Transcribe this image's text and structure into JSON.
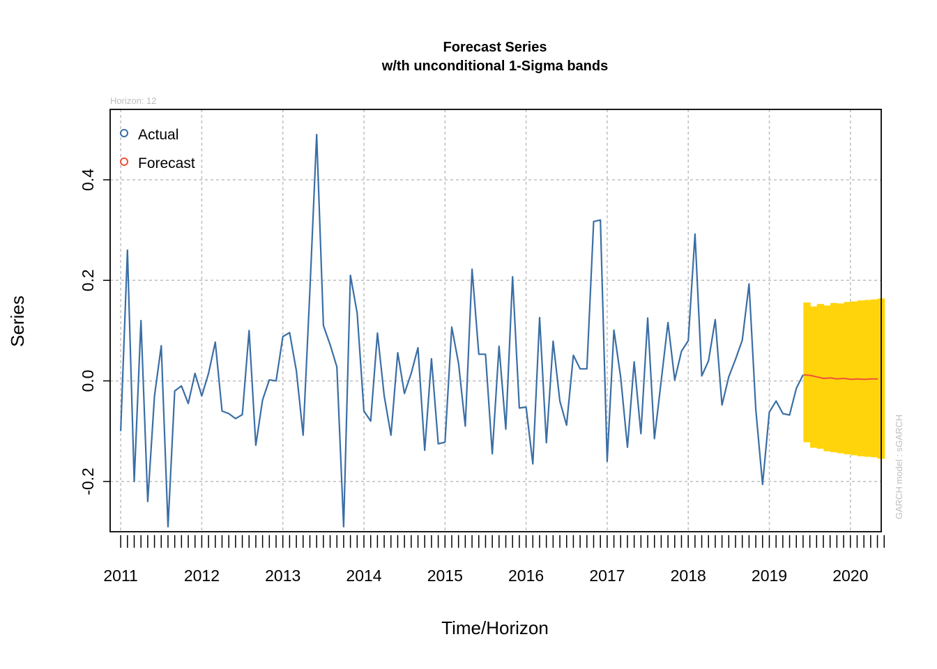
{
  "chart_data": {
    "type": "line",
    "title": "Forecast Series",
    "subtitle": "w/th unconditional 1-Sigma bands",
    "xlabel": "Time/Horizon",
    "ylabel": "Series",
    "horizon_label": "Horizon: 12",
    "model_label": "GARCH model :  sGARCH",
    "ylim": [
      -0.3,
      0.54
    ],
    "xlim": [
      2010.87,
      2020.38
    ],
    "x_ticks": [
      "2011",
      "2012",
      "2013",
      "2014",
      "2015",
      "2016",
      "2017",
      "2018",
      "2019",
      "2020"
    ],
    "y_ticks": [
      "-0.2",
      "0.0",
      "0.2",
      "0.4"
    ],
    "grid": true,
    "legend": {
      "position": "top-left",
      "entries": [
        "Actual",
        "Forecast"
      ]
    },
    "colors": {
      "actual": "#3A6EA5",
      "forecast": "#F0503C",
      "band": "#FFD40A",
      "grid": "#BEBEBE"
    },
    "series": [
      {
        "name": "Actual",
        "start": 2011.0,
        "step": 0.08333,
        "values": [
          -0.1,
          0.26,
          -0.2,
          0.12,
          -0.24,
          -0.03,
          0.07,
          -0.29,
          -0.02,
          -0.01,
          -0.045,
          0.015,
          -0.03,
          0.015,
          0.077,
          -0.06,
          -0.065,
          -0.075,
          -0.067,
          0.1,
          -0.128,
          -0.038,
          0.002,
          0.0,
          0.088,
          0.096,
          0.02,
          -0.108,
          0.18,
          0.49,
          0.11,
          0.072,
          0.028,
          -0.29,
          0.21,
          0.135,
          -0.06,
          -0.08,
          0.095,
          -0.03,
          -0.108,
          0.056,
          -0.025,
          0.015,
          0.066,
          -0.138,
          0.044,
          -0.125,
          -0.122,
          0.107,
          0.035,
          -0.09,
          0.222,
          0.053,
          0.053,
          -0.145,
          0.069,
          -0.096,
          0.207,
          -0.054,
          -0.052,
          -0.165,
          0.126,
          -0.123,
          0.079,
          -0.04,
          -0.088,
          0.051,
          0.024,
          0.024,
          0.317,
          0.32,
          -0.16,
          0.101,
          0.007,
          -0.132,
          0.038,
          -0.105,
          0.125,
          -0.115,
          0.0,
          0.116,
          0.002,
          0.059,
          0.08,
          0.292,
          0.01,
          0.04,
          0.122,
          -0.048,
          0.008,
          0.043,
          0.081,
          0.193,
          -0.057,
          -0.206,
          -0.062,
          -0.04,
          -0.065,
          -0.068,
          -0.015,
          0.012
        ]
      },
      {
        "name": "Forecast",
        "start": 2019.42,
        "step": 0.08333,
        "values": [
          0.012,
          0.011,
          0.008,
          0.005,
          0.006,
          0.004,
          0.005,
          0.003,
          0.004,
          0.003,
          0.004,
          0.004
        ],
        "band_upper": [
          0.156,
          0.148,
          0.153,
          0.15,
          0.155,
          0.154,
          0.157,
          0.158,
          0.16,
          0.161,
          0.162,
          0.164
        ],
        "band_lower": [
          -0.122,
          -0.133,
          -0.135,
          -0.14,
          -0.142,
          -0.144,
          -0.146,
          -0.148,
          -0.15,
          -0.151,
          -0.152,
          -0.155
        ]
      }
    ]
  }
}
